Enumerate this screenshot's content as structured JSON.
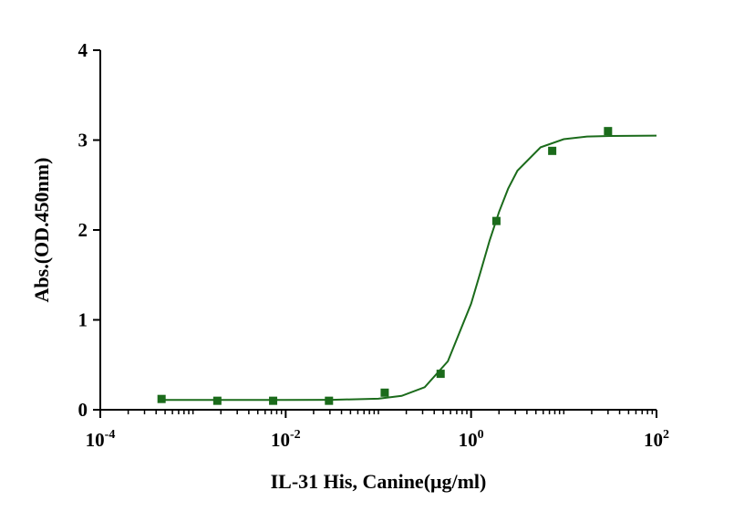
{
  "chart_data": {
    "type": "scatter",
    "xlabel": "IL-31 His, Canine(μg/ml)",
    "ylabel": "Abs.(OD.450nm)",
    "xscale": "log",
    "color": "#1b6b1b",
    "x": [
      0.000458,
      0.00183,
      0.00732,
      0.0293,
      0.117,
      0.469,
      1.875,
      7.5,
      30
    ],
    "values": [
      0.12,
      0.1,
      0.1,
      0.1,
      0.19,
      0.4,
      2.1,
      2.88,
      3.1
    ],
    "curve": {
      "x": [
        0.000447,
        0.001,
        0.00316,
        0.01,
        0.0316,
        0.1,
        0.178,
        0.316,
        0.562,
        1,
        1.26,
        1.58,
        2,
        2.51,
        3.16,
        5.62,
        10,
        17.8,
        31.6,
        100
      ],
      "values": [
        0.11,
        0.11,
        0.11,
        0.11,
        0.111,
        0.123,
        0.154,
        0.251,
        0.539,
        1.18,
        1.53,
        1.88,
        2.2,
        2.46,
        2.66,
        2.92,
        3.01,
        3.04,
        3.046,
        3.05
      ]
    },
    "xlim": [
      0.0001,
      100
    ],
    "ylim": [
      0,
      4
    ],
    "xticks": [
      {
        "value": 0.0001,
        "label": "10",
        "exponent": "-4"
      },
      {
        "value": 0.01,
        "label": "10",
        "exponent": "-2"
      },
      {
        "value": 1,
        "label": "10",
        "exponent": "0"
      },
      {
        "value": 100,
        "label": "10",
        "exponent": "2"
      }
    ],
    "yticks": [
      0,
      1,
      2,
      3,
      4
    ]
  }
}
